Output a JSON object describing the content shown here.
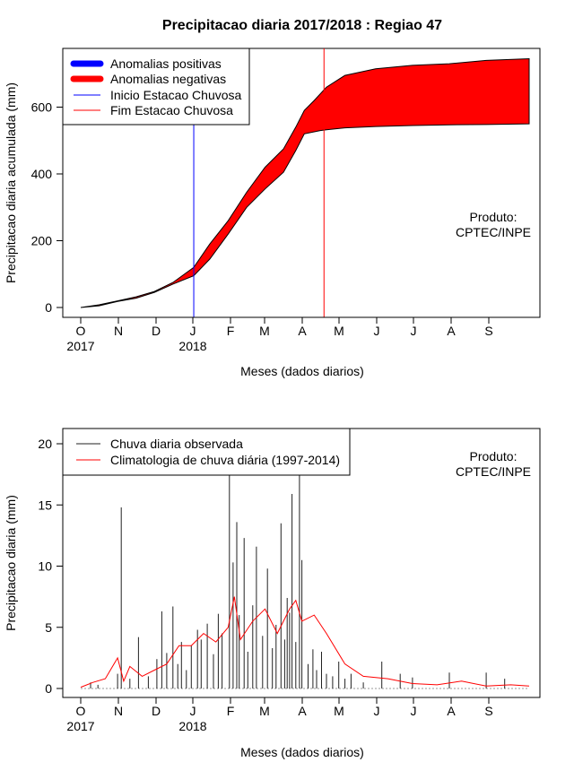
{
  "title": "Precipitacao diaria 2017/2018 : Regiao 47",
  "chart_data": [
    {
      "type": "area",
      "ylabel": "Precipitacao diaria acumulada (mm)",
      "xlabel": "Meses (dados diarios)",
      "ylim": [
        -30,
        800
      ],
      "yticks": [
        "0",
        "200",
        "400",
        "600"
      ],
      "month_labels": [
        "O",
        "N",
        "D",
        "J",
        "F",
        "M",
        "A",
        "M",
        "J",
        "J",
        "A",
        "S"
      ],
      "year_labels": [
        "2017",
        "2018"
      ],
      "product_label": [
        "Produto:",
        "CPTEC/INPE"
      ],
      "legend": [
        {
          "label": "Anomalias positivas",
          "color": "#0000ff",
          "style": "thick"
        },
        {
          "label": "Anomalias negativas",
          "color": "#ff0000",
          "style": "thick"
        },
        {
          "label": "Inicio Estacao Chuvosa",
          "color": "#0000ff",
          "style": "thin"
        },
        {
          "label": "Fim Estacao Chuvosa",
          "color": "#ff0000",
          "style": "thin"
        }
      ],
      "markers": {
        "inicio_day": 92,
        "fim_day": 198
      },
      "climatology_cumulative": {
        "x": [
          0,
          15,
          30,
          45,
          60,
          75,
          92,
          105,
          120,
          135,
          150,
          165,
          175,
          182,
          190,
          200,
          215,
          240,
          270,
          300,
          330,
          365
        ],
        "y": [
          0,
          8,
          20,
          32,
          48,
          75,
          120,
          190,
          260,
          345,
          420,
          475,
          540,
          590,
          620,
          660,
          695,
          715,
          725,
          730,
          740,
          745
        ]
      },
      "observed_cumulative": {
        "x": [
          0,
          15,
          30,
          45,
          60,
          75,
          92,
          105,
          120,
          135,
          150,
          165,
          175,
          182,
          195,
          200,
          215,
          240,
          270,
          300,
          330,
          365
        ],
        "y": [
          0,
          5,
          18,
          28,
          45,
          70,
          95,
          145,
          220,
          300,
          355,
          405,
          470,
          520,
          530,
          532,
          538,
          542,
          545,
          547,
          548,
          550
        ]
      }
    },
    {
      "type": "bar",
      "ylabel": "Precipitacao diaria (mm)",
      "xlabel": "Meses (dados diarios)",
      "ylim": [
        -1,
        21
      ],
      "yticks": [
        "0",
        "5",
        "10",
        "15",
        "20"
      ],
      "month_labels": [
        "O",
        "N",
        "D",
        "J",
        "F",
        "M",
        "A",
        "M",
        "J",
        "J",
        "A",
        "S"
      ],
      "year_labels": [
        "2017",
        "2018"
      ],
      "product_label": [
        "Produto:",
        "CPTEC/INPE"
      ],
      "legend": [
        {
          "label": "Chuva diaria observada",
          "color": "#222222"
        },
        {
          "label": "Climatologia de chuva diária (1997-2014)",
          "color": "#ff0000"
        }
      ],
      "observed_daily_spikes": {
        "day": [
          8,
          14,
          30,
          33,
          40,
          47,
          55,
          62,
          66,
          70,
          75,
          79,
          82,
          86,
          90,
          95,
          98,
          103,
          108,
          112,
          115,
          121,
          124,
          127,
          129,
          133,
          136,
          140,
          143,
          148,
          152,
          156,
          159,
          163,
          166,
          168,
          170,
          172,
          175,
          178,
          180,
          185,
          189,
          192,
          196,
          200,
          205,
          210,
          215,
          220,
          230,
          245,
          260,
          270,
          300,
          330,
          345
        ],
        "mm": [
          0.5,
          0.3,
          1.2,
          14.8,
          0.8,
          4.2,
          1.0,
          2.4,
          6.3,
          2.9,
          6.7,
          2.0,
          3.8,
          1.5,
          3.5,
          4.8,
          4.0,
          5.3,
          2.8,
          6.1,
          4.5,
          17.5,
          10.3,
          13.6,
          6.0,
          12.3,
          3.0,
          6.8,
          11.6,
          4.3,
          9.8,
          3.3,
          5.2,
          13.5,
          4.0,
          7.4,
          6.2,
          15.9,
          3.8,
          17.5,
          10.5,
          2.0,
          3.2,
          1.5,
          3.0,
          1.2,
          1.0,
          2.2,
          0.8,
          1.2,
          0.5,
          2.2,
          1.2,
          0.9,
          1.3,
          1.3,
          0.8
        ]
      },
      "climatology_daily": {
        "x": [
          0,
          10,
          20,
          30,
          35,
          40,
          50,
          60,
          70,
          80,
          90,
          100,
          110,
          120,
          125,
          130,
          140,
          150,
          160,
          170,
          175,
          180,
          190,
          200,
          215,
          230,
          250,
          270,
          290,
          310,
          330,
          350,
          365
        ],
        "y": [
          0.1,
          0.5,
          0.8,
          2.5,
          0.6,
          1.8,
          1.0,
          1.5,
          2.0,
          3.5,
          3.5,
          4.5,
          3.8,
          5.0,
          7.5,
          4.0,
          5.5,
          6.5,
          4.5,
          6.5,
          7.2,
          5.5,
          6.0,
          4.5,
          2.0,
          1.0,
          0.8,
          0.4,
          0.3,
          0.6,
          0.2,
          0.3,
          0.2
        ]
      }
    }
  ]
}
